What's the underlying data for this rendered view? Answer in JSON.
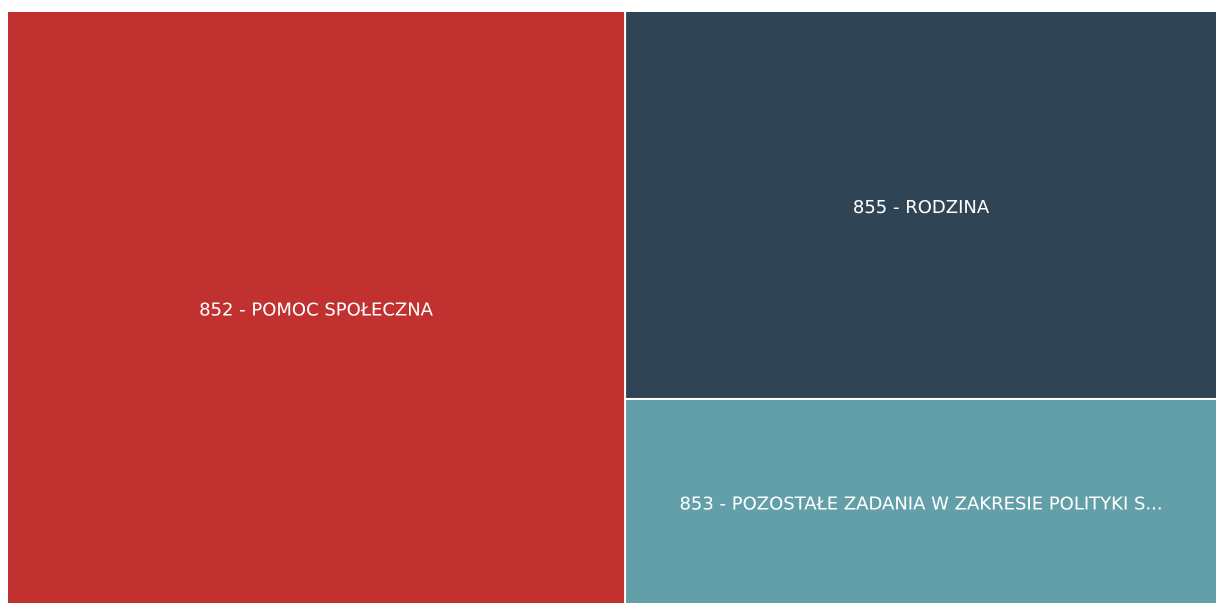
{
  "chart_data": {
    "type": "treemap",
    "categories": [
      "852 - POMOC SPOŁECZNA",
      "855 - RODZINA",
      "853 - POZOSTAŁE ZADANIA W ZAKRESIE POLITYKI S..."
    ],
    "values": [
      51,
      32,
      17
    ],
    "colors": [
      "#c1312f",
      "#2f4455",
      "#629fa9"
    ]
  }
}
